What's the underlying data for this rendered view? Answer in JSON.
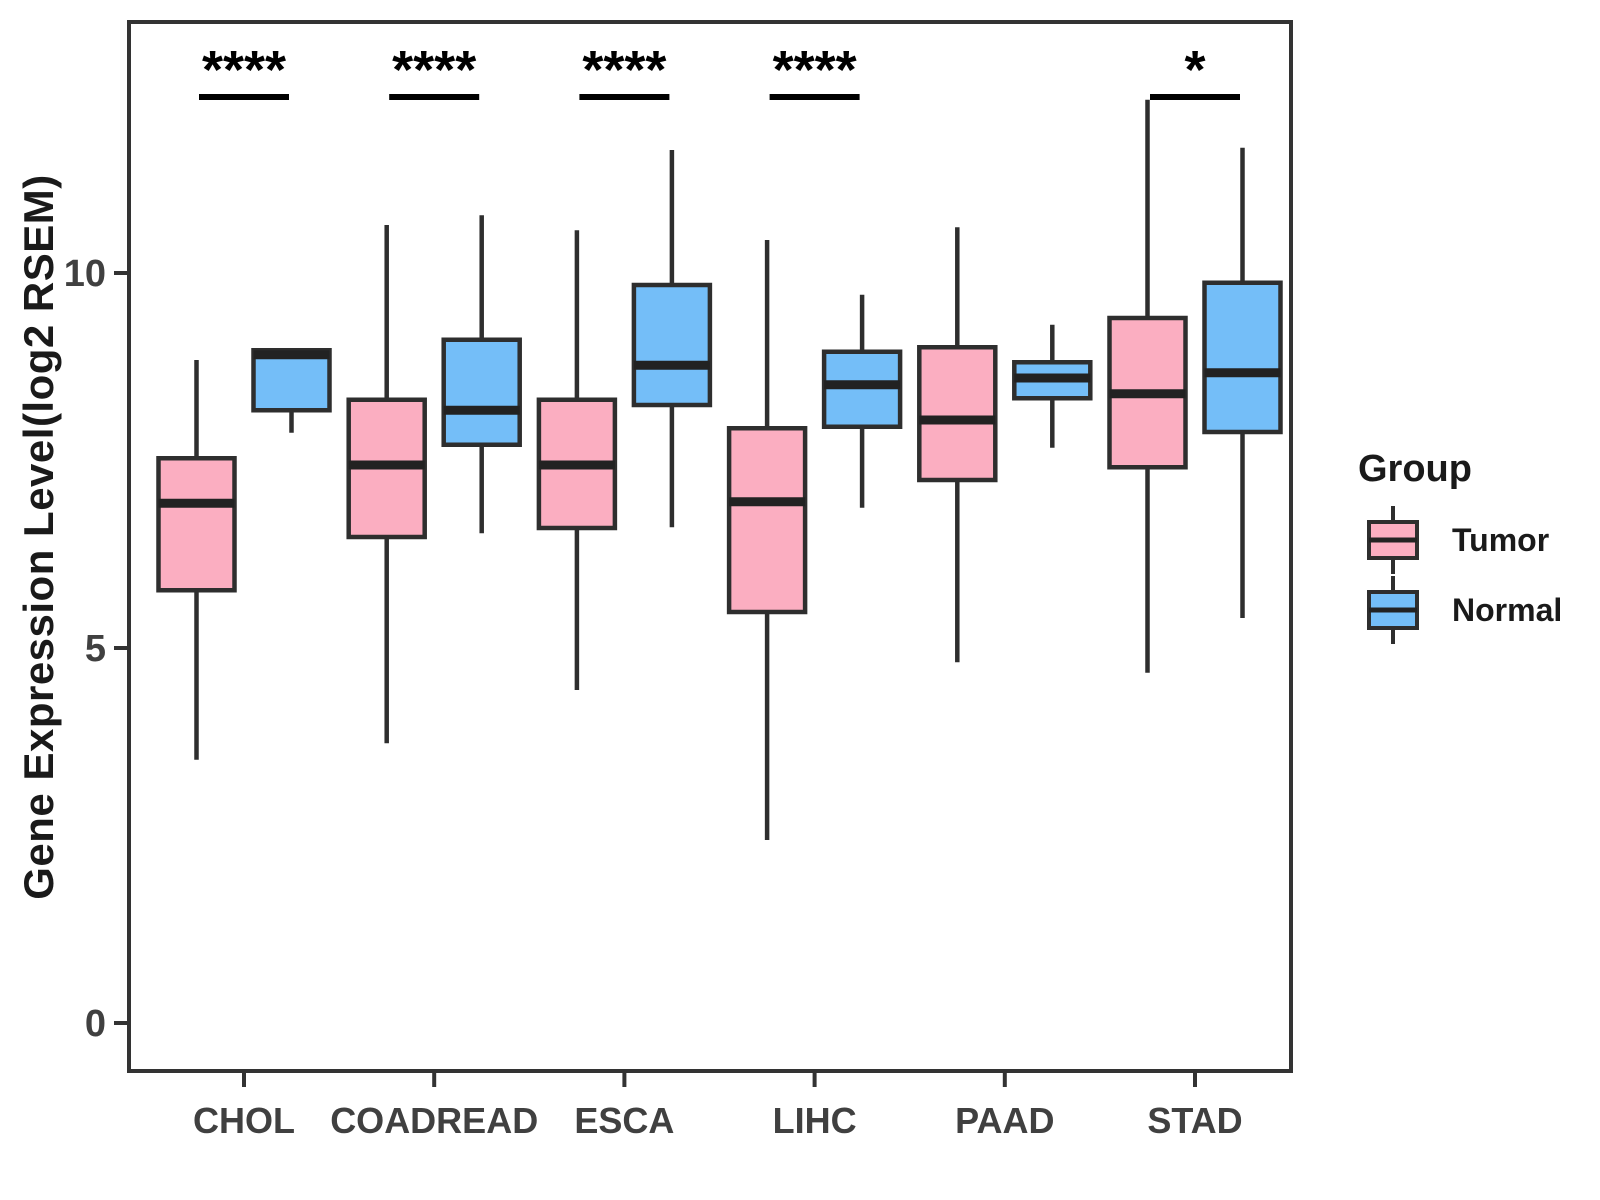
{
  "chart_data": {
    "type": "boxplot",
    "title": "",
    "xlabel": "",
    "ylabel": "Gene Expression Level(log2 RSEM)",
    "categories": [
      "CHOL",
      "COADREAD",
      "ESCA",
      "LIHC",
      "PAAD",
      "STAD"
    ],
    "y_ticks": [
      0,
      5,
      10
    ],
    "ylim": [
      -0.6,
      13.3
    ],
    "grid": false,
    "legend": {
      "title": "Group",
      "position": "right",
      "items": [
        {
          "label": "Tumor",
          "color": "#FBAEC1"
        },
        {
          "label": "Normal",
          "color": "#74BEF8"
        }
      ]
    },
    "series": [
      {
        "name": "Tumor",
        "color": "#FBAEC1",
        "boxes": [
          {
            "category": "CHOL",
            "min": 3.51,
            "q1": 5.77,
            "median": 6.93,
            "q3": 7.53,
            "max": 8.84
          },
          {
            "category": "COADREAD",
            "min": 3.73,
            "q1": 6.48,
            "median": 7.44,
            "q3": 8.31,
            "max": 10.64
          },
          {
            "category": "ESCA",
            "min": 4.44,
            "q1": 6.6,
            "median": 7.44,
            "q3": 8.31,
            "max": 10.57
          },
          {
            "category": "LIHC",
            "min": 2.44,
            "q1": 5.48,
            "median": 6.95,
            "q3": 7.93,
            "max": 10.44
          },
          {
            "category": "PAAD",
            "min": 4.81,
            "q1": 7.24,
            "median": 8.04,
            "q3": 9.01,
            "max": 10.61
          },
          {
            "category": "STAD",
            "min": 4.67,
            "q1": 7.41,
            "median": 8.39,
            "q3": 9.4,
            "max": 12.31
          }
        ]
      },
      {
        "name": "Normal",
        "color": "#74BEF8",
        "boxes": [
          {
            "category": "CHOL",
            "min": 7.87,
            "q1": 8.17,
            "median": 8.91,
            "q3": 8.97,
            "max": 8.97
          },
          {
            "category": "COADREAD",
            "min": 6.53,
            "q1": 7.71,
            "median": 8.17,
            "q3": 9.11,
            "max": 10.77
          },
          {
            "category": "ESCA",
            "min": 6.61,
            "q1": 8.24,
            "median": 8.77,
            "q3": 9.84,
            "max": 11.64
          },
          {
            "category": "LIHC",
            "min": 6.87,
            "q1": 7.95,
            "median": 8.51,
            "q3": 8.95,
            "max": 9.71
          },
          {
            "category": "PAAD",
            "min": 7.67,
            "q1": 8.33,
            "median": 8.6,
            "q3": 8.81,
            "max": 9.31
          },
          {
            "category": "STAD",
            "min": 5.4,
            "q1": 7.88,
            "median": 8.67,
            "q3": 9.87,
            "max": 11.67
          }
        ]
      }
    ],
    "significance": [
      {
        "category": "CHOL",
        "label": "****"
      },
      {
        "category": "COADREAD",
        "label": "****"
      },
      {
        "category": "ESCA",
        "label": "****"
      },
      {
        "category": "LIHC",
        "label": "****"
      },
      {
        "category": "STAD",
        "label": "*"
      }
    ]
  },
  "colors": {
    "box_border": "#2E2E2E",
    "median": "#222222",
    "axis": "#333333",
    "tick_label": "#404040",
    "significance": "#000000",
    "background": "#FFFFFF"
  }
}
